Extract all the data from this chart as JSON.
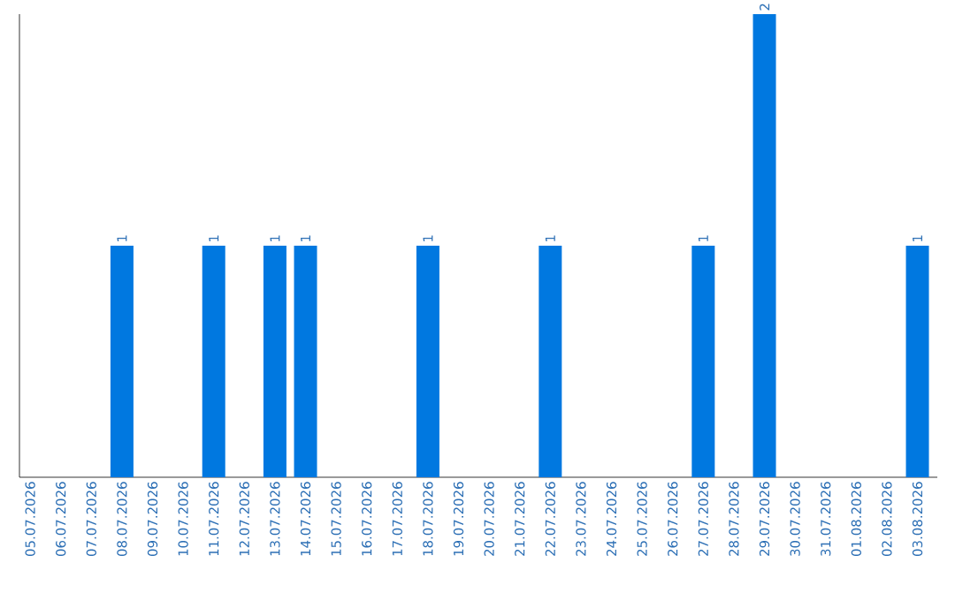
{
  "chart_data": {
    "type": "bar",
    "categories": [
      "05.07.2026",
      "06.07.2026",
      "07.07.2026",
      "08.07.2026",
      "09.07.2026",
      "10.07.2026",
      "11.07.2026",
      "12.07.2026",
      "13.07.2026",
      "14.07.2026",
      "15.07.2026",
      "16.07.2026",
      "17.07.2026",
      "18.07.2026",
      "19.07.2026",
      "20.07.2026",
      "21.07.2026",
      "22.07.2026",
      "23.07.2026",
      "24.07.2026",
      "25.07.2026",
      "26.07.2026",
      "27.07.2026",
      "28.07.2026",
      "29.07.2026",
      "30.07.2026",
      "31.07.2026",
      "01.08.2026",
      "02.08.2026",
      "03.08.2026"
    ],
    "values": [
      0,
      0,
      0,
      1,
      0,
      0,
      1,
      0,
      1,
      1,
      0,
      0,
      0,
      1,
      0,
      0,
      0,
      1,
      0,
      0,
      0,
      0,
      1,
      0,
      2,
      0,
      0,
      0,
      0,
      1
    ],
    "value_labels": [
      null,
      null,
      null,
      "1",
      null,
      null,
      "1",
      null,
      "1",
      "1",
      null,
      null,
      null,
      "1",
      null,
      null,
      null,
      "1",
      null,
      null,
      null,
      null,
      "1",
      null,
      "2",
      null,
      null,
      null,
      null,
      "1"
    ],
    "color": "#0078e0"
  }
}
